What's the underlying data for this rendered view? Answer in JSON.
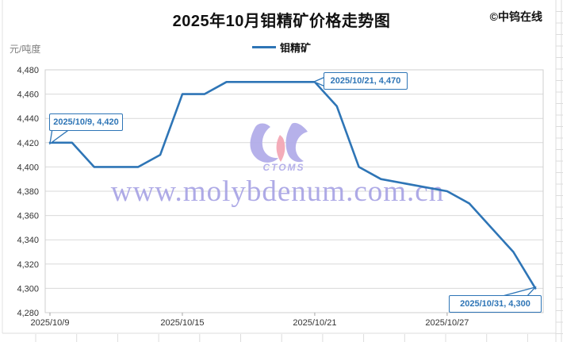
{
  "header": {
    "title": "2025年10月钼精矿价格走势图",
    "copyright": "©中钨在线"
  },
  "legend": {
    "label": "钼精矿"
  },
  "y_axis_unit": "元/吨度",
  "watermark": {
    "site": "www.molybdenum.com.cn",
    "logo": "CTOMS"
  },
  "annotations": [
    {
      "label": "2025/10/9, 4,420"
    },
    {
      "label": "2025/10/21, 4,470"
    },
    {
      "label": "2025/10/31, 4,300"
    }
  ],
  "colors": {
    "line": "#2e75b6",
    "grid": "#d9d9d9",
    "plot_border": "#cfcfcf",
    "tick_text": "#333333",
    "watermark": "#a6a1e4",
    "logo_purple": "#b2ade9",
    "logo_pink": "#f3a8b5",
    "annotation": "#2e75b6"
  },
  "chart_data": {
    "type": "line",
    "title": "2025年10月钼精矿价格走势图",
    "xlabel": "",
    "ylabel": "元/吨度",
    "ylim": [
      4280,
      4480
    ],
    "y_tick_step": 20,
    "x_tick_labels": [
      "2025/10/9",
      "2025/10/15",
      "2025/10/21",
      "2025/10/27"
    ],
    "grid": true,
    "legend_position": "top-center",
    "series": [
      {
        "name": "钼精矿",
        "points": [
          [
            "2025/10/9",
            4420
          ],
          [
            "2025/10/10",
            4420
          ],
          [
            "2025/10/11",
            4400
          ],
          [
            "2025/10/13",
            4400
          ],
          [
            "2025/10/14",
            4410
          ],
          [
            "2025/10/15",
            4460
          ],
          [
            "2025/10/16",
            4460
          ],
          [
            "2025/10/17",
            4470
          ],
          [
            "2025/10/20",
            4470
          ],
          [
            "2025/10/21",
            4470
          ],
          [
            "2025/10/22",
            4450
          ],
          [
            "2025/10/23",
            4400
          ],
          [
            "2025/10/24",
            4390
          ],
          [
            "2025/10/27",
            4380
          ],
          [
            "2025/10/28",
            4370
          ],
          [
            "2025/10/29",
            4350
          ],
          [
            "2025/10/30",
            4330
          ],
          [
            "2025/10/31",
            4300
          ]
        ]
      }
    ]
  }
}
